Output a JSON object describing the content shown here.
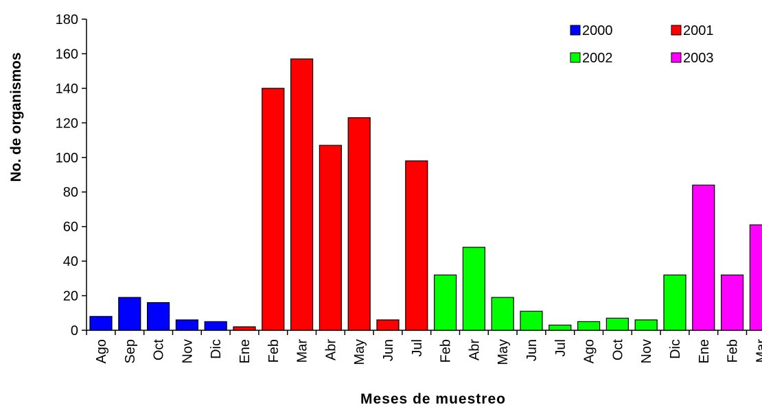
{
  "chart_data": {
    "type": "bar",
    "xlabel": "Meses de muestreo",
    "ylabel": "No. de organismos",
    "ylim": [
      0,
      180
    ],
    "yticks": [
      0,
      20,
      40,
      60,
      80,
      100,
      120,
      140,
      160,
      180
    ],
    "grid": false,
    "legend_position": "top-right",
    "categories": [
      "Ago",
      "Sep",
      "Oct",
      "Nov",
      "Dic",
      "Ene",
      "Feb",
      "Mar",
      "Abr",
      "May",
      "Jun",
      "Jul",
      "Feb",
      "Abr",
      "May",
      "Jun",
      "Jul",
      "Ago",
      "Oct",
      "Nov",
      "Dic",
      "Ene",
      "Feb",
      "Mar"
    ],
    "values": [
      8,
      19,
      16,
      6,
      5,
      2,
      140,
      157,
      107,
      123,
      6,
      98,
      32,
      48,
      19,
      11,
      3,
      5,
      7,
      6,
      32,
      84,
      32,
      61
    ],
    "bar_series": [
      "2000",
      "2000",
      "2000",
      "2000",
      "2000",
      "2001",
      "2001",
      "2001",
      "2001",
      "2001",
      "2001",
      "2001",
      "2002",
      "2002",
      "2002",
      "2002",
      "2002",
      "2002",
      "2002",
      "2002",
      "2002",
      "2003",
      "2003",
      "2003"
    ],
    "series": [
      {
        "name": "2000",
        "color": "#0000ff"
      },
      {
        "name": "2001",
        "color": "#ff0000"
      },
      {
        "name": "2002",
        "color": "#00ff00"
      },
      {
        "name": "2003",
        "color": "#ff00ff"
      }
    ]
  }
}
